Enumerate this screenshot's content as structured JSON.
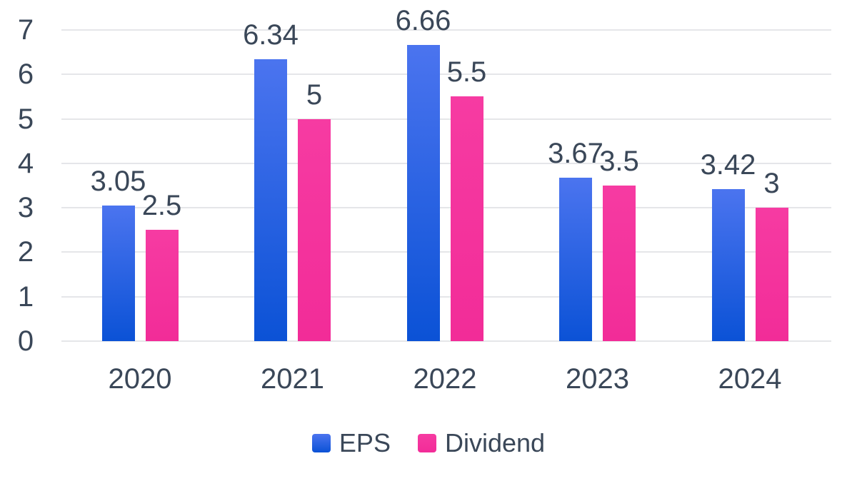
{
  "chart_data": {
    "type": "bar",
    "title": "",
    "categories": [
      "2020",
      "2021",
      "2022",
      "2023",
      "2024"
    ],
    "series": [
      {
        "name": "EPS",
        "values": [
          3.05,
          6.34,
          6.66,
          3.67,
          3.42
        ],
        "labels": [
          "3.05",
          "6.34",
          "6.66",
          "3.67",
          "3.42"
        ],
        "color_top": "#4b74ef",
        "color_bottom": "#0b52d6"
      },
      {
        "name": "Dividend",
        "values": [
          2.5,
          5,
          5.5,
          3.5,
          3
        ],
        "labels": [
          "2.5",
          "5",
          "5.5",
          "3.5",
          "3"
        ],
        "color_top": "#f63ba2",
        "color_bottom": "#f22c98"
      }
    ],
    "xlabel": "",
    "ylabel": "",
    "ylim": [
      0,
      7
    ],
    "yticks": [
      0,
      1,
      2,
      3,
      4,
      5,
      6,
      7
    ],
    "grid": true,
    "legend_position": "bottom",
    "colors": {
      "text": "#3a4758",
      "gridline": "#e5e6e9",
      "background": "#ffffff"
    }
  }
}
